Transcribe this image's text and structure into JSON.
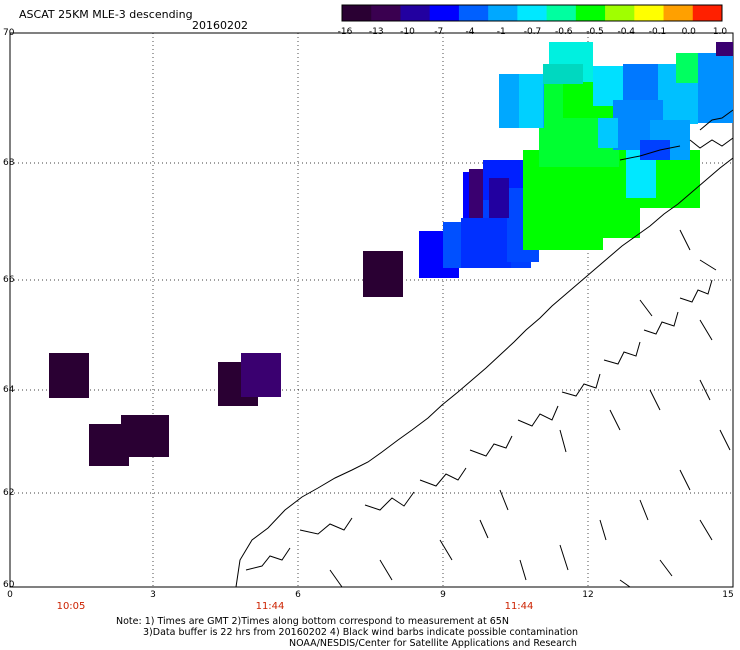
{
  "header": {
    "title": "ASCAT 25KM MLE-3 descending",
    "date": "20160202"
  },
  "colorbar": {
    "labels": [
      "-16",
      "-13",
      "-10",
      "-7",
      "-4",
      "-1",
      "-0.7",
      "-0.6",
      "-0.5",
      "-0.4",
      "-0.1",
      "0.0",
      "1.0"
    ],
    "colors": [
      "#2a0033",
      "#3a0050",
      "#2200a0",
      "#0000ff",
      "#0060ff",
      "#00a8ff",
      "#00e8ff",
      "#00ffa0",
      "#00ff00",
      "#a0ff00",
      "#ffff00",
      "#ffa000",
      "#ff2000"
    ]
  },
  "map": {
    "lat_labels": [
      "70",
      "68",
      "66",
      "64",
      "62",
      "60"
    ],
    "lon_labels": [
      "0",
      "3",
      "6",
      "9",
      "12",
      "15"
    ],
    "time_labels": [
      "10:05",
      "11:44",
      "11:44"
    ],
    "lat_range": [
      60,
      70
    ],
    "lon_range": [
      0,
      15
    ]
  },
  "notes": {
    "line1": "Note: 1) Times are GMT 2)Times along bottom correspond to measurement at 65N",
    "line2": "3)Data buffer is 22 hrs from 20160202 4) Black wind barbs indicate possible contamination",
    "line3": "NOAA/NESDIS/Center for Satellite Applications and Research"
  }
}
